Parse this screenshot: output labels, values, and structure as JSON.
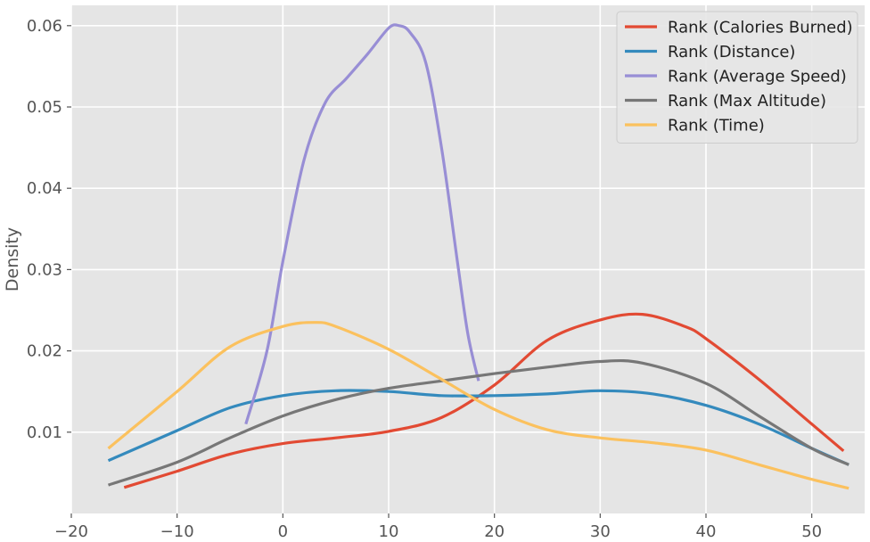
{
  "chart_data": {
    "type": "line",
    "title": "",
    "xlabel": "",
    "ylabel": "Density",
    "xlim": [
      -20,
      55
    ],
    "ylim": [
      0,
      0.0625
    ],
    "xticks": [
      -20,
      -10,
      0,
      10,
      20,
      30,
      40,
      50
    ],
    "xtick_labels": [
      "−20",
      "−10",
      "0",
      "10",
      "20",
      "30",
      "40",
      "50"
    ],
    "yticks": [
      0.01,
      0.02,
      0.03,
      0.04,
      0.05,
      0.06
    ],
    "ytick_labels": [
      "0.01",
      "0.02",
      "0.03",
      "0.04",
      "0.05",
      "0.06"
    ],
    "grid": true,
    "legend_position": "top-right",
    "series": [
      {
        "name": "Rank (Calories Burned)",
        "color": "#E24A33",
        "points": [
          [
            -15,
            0.0032
          ],
          [
            -10,
            0.0052
          ],
          [
            -5,
            0.0073
          ],
          [
            0,
            0.0086
          ],
          [
            5,
            0.0093
          ],
          [
            10,
            0.0101
          ],
          [
            15,
            0.0118
          ],
          [
            20,
            0.0158
          ],
          [
            25,
            0.0213
          ],
          [
            30,
            0.0238
          ],
          [
            34,
            0.0245
          ],
          [
            38,
            0.023
          ],
          [
            40,
            0.0215
          ],
          [
            45,
            0.0165
          ],
          [
            50,
            0.011
          ],
          [
            53,
            0.0077
          ]
        ]
      },
      {
        "name": "Rank (Distance)",
        "color": "#348ABD",
        "points": [
          [
            -16.5,
            0.0065
          ],
          [
            -10,
            0.0102
          ],
          [
            -5,
            0.013
          ],
          [
            0,
            0.0145
          ],
          [
            5,
            0.0151
          ],
          [
            10,
            0.015
          ],
          [
            15,
            0.0145
          ],
          [
            20,
            0.0145
          ],
          [
            25,
            0.0147
          ],
          [
            30,
            0.0151
          ],
          [
            35,
            0.0147
          ],
          [
            40,
            0.0133
          ],
          [
            45,
            0.011
          ],
          [
            50,
            0.008
          ],
          [
            53.5,
            0.006
          ]
        ]
      },
      {
        "name": "Rank (Average Speed)",
        "color": "#988ED5",
        "points": [
          [
            -3.5,
            0.011
          ],
          [
            -1.5,
            0.02
          ],
          [
            0,
            0.031
          ],
          [
            2,
            0.0435
          ],
          [
            4,
            0.0505
          ],
          [
            6,
            0.0535
          ],
          [
            8,
            0.0565
          ],
          [
            10,
            0.0597
          ],
          [
            11,
            0.06
          ],
          [
            12,
            0.0592
          ],
          [
            13.5,
            0.0555
          ],
          [
            15,
            0.045
          ],
          [
            16.5,
            0.031
          ],
          [
            17.5,
            0.022
          ],
          [
            18.5,
            0.0163
          ]
        ]
      },
      {
        "name": "Rank (Max Altitude)",
        "color": "#777777",
        "points": [
          [
            -16.5,
            0.0035
          ],
          [
            -10,
            0.0063
          ],
          [
            -5,
            0.0093
          ],
          [
            0,
            0.012
          ],
          [
            5,
            0.014
          ],
          [
            10,
            0.0154
          ],
          [
            15,
            0.0163
          ],
          [
            20,
            0.0172
          ],
          [
            25,
            0.018
          ],
          [
            30,
            0.0187
          ],
          [
            34,
            0.0185
          ],
          [
            40,
            0.016
          ],
          [
            45,
            0.012
          ],
          [
            50,
            0.008
          ],
          [
            53.5,
            0.006
          ]
        ]
      },
      {
        "name": "Rank (Time)",
        "color": "#FBC15E",
        "points": [
          [
            -16.5,
            0.008
          ],
          [
            -10,
            0.015
          ],
          [
            -5,
            0.0205
          ],
          [
            0,
            0.023
          ],
          [
            3,
            0.0235
          ],
          [
            5,
            0.023
          ],
          [
            10,
            0.0202
          ],
          [
            15,
            0.0165
          ],
          [
            20,
            0.0128
          ],
          [
            25,
            0.0103
          ],
          [
            30,
            0.0093
          ],
          [
            35,
            0.0087
          ],
          [
            40,
            0.0078
          ],
          [
            45,
            0.006
          ],
          [
            50,
            0.0042
          ],
          [
            53.5,
            0.0031
          ]
        ]
      }
    ]
  },
  "style": {
    "plot_background": "#E5E5E5",
    "grid_color": "#FFFFFF",
    "text_color": "#555555"
  }
}
